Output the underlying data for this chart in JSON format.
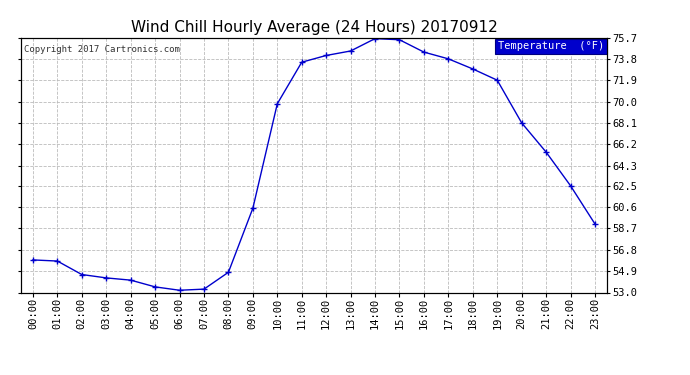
{
  "title": "Wind Chill Hourly Average (24 Hours) 20170912",
  "copyright": "Copyright 2017 Cartronics.com",
  "legend_label": "Temperature  (°F)",
  "hours": [
    "00:00",
    "01:00",
    "02:00",
    "03:00",
    "04:00",
    "05:00",
    "06:00",
    "07:00",
    "08:00",
    "09:00",
    "10:00",
    "11:00",
    "12:00",
    "13:00",
    "14:00",
    "15:00",
    "16:00",
    "17:00",
    "18:00",
    "19:00",
    "20:00",
    "21:00",
    "22:00",
    "23:00"
  ],
  "values": [
    55.9,
    55.8,
    54.6,
    54.3,
    54.1,
    53.5,
    53.2,
    53.3,
    54.8,
    60.5,
    69.8,
    73.5,
    74.1,
    74.5,
    75.6,
    75.5,
    74.4,
    73.8,
    72.9,
    71.9,
    68.1,
    65.5,
    62.5,
    59.1
  ],
  "ylim_min": 53.0,
  "ylim_max": 75.7,
  "yticks": [
    53.0,
    54.9,
    56.8,
    58.7,
    60.6,
    62.5,
    64.3,
    66.2,
    68.1,
    70.0,
    71.9,
    73.8,
    75.7
  ],
  "line_color": "#0000cc",
  "marker_color": "#0000cc",
  "bg_color": "#ffffff",
  "grid_color": "#bbbbbb",
  "legend_bg": "#0000cc",
  "legend_fg": "#ffffff",
  "title_fontsize": 11,
  "copyright_fontsize": 6.5,
  "tick_fontsize": 7.5,
  "legend_fontsize": 7.5
}
